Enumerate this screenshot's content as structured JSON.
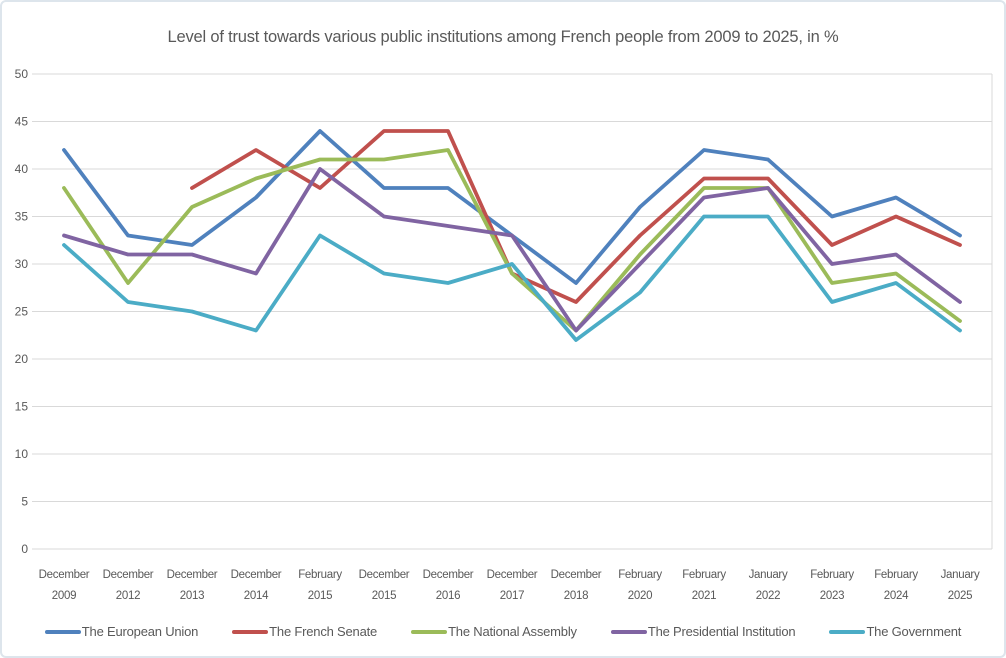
{
  "chart_data": {
    "type": "line",
    "title": "Level of trust towards various public institutions among French people from 2009 to 2025, in %",
    "categories": [
      [
        "December",
        "2009"
      ],
      [
        "December",
        "2012"
      ],
      [
        "December",
        "2013"
      ],
      [
        "December",
        "2014"
      ],
      [
        "February",
        "2015"
      ],
      [
        "December",
        "2015"
      ],
      [
        "December",
        "2016"
      ],
      [
        "December",
        "2017"
      ],
      [
        "December",
        "2018"
      ],
      [
        "February",
        "2020"
      ],
      [
        "February",
        "2021"
      ],
      [
        "January",
        "2022"
      ],
      [
        "February",
        "2023"
      ],
      [
        "February",
        "2024"
      ],
      [
        "January",
        "2025"
      ]
    ],
    "series": [
      {
        "name": "The European Union",
        "color": "#4F81BD",
        "values": [
          42,
          33,
          32,
          37,
          44,
          38,
          38,
          33,
          28,
          36,
          42,
          41,
          35,
          37,
          33
        ]
      },
      {
        "name": "The French Senate",
        "color": "#C0504D",
        "values": [
          null,
          null,
          38,
          42,
          38,
          44,
          44,
          29,
          26,
          33,
          39,
          39,
          32,
          35,
          32
        ]
      },
      {
        "name": "The National Assembly",
        "color": "#9BBB59",
        "values": [
          38,
          28,
          36,
          39,
          41,
          41,
          42,
          29,
          23,
          31,
          38,
          38,
          28,
          29,
          24
        ]
      },
      {
        "name": "The Presidential Institution",
        "color": "#8064A2",
        "values": [
          33,
          31,
          31,
          29,
          40,
          35,
          34,
          33,
          23,
          30,
          37,
          38,
          30,
          31,
          26
        ]
      },
      {
        "name": "The Government",
        "color": "#4BACC6",
        "values": [
          32,
          26,
          25,
          23,
          33,
          29,
          28,
          30,
          22,
          27,
          35,
          35,
          26,
          28,
          23
        ]
      }
    ],
    "y_axis": {
      "min": 0,
      "max": 50,
      "step": 5
    },
    "grid": true,
    "legend_position": "bottom",
    "text_color": "#595959",
    "gridline_color": "#D9D9D9"
  }
}
